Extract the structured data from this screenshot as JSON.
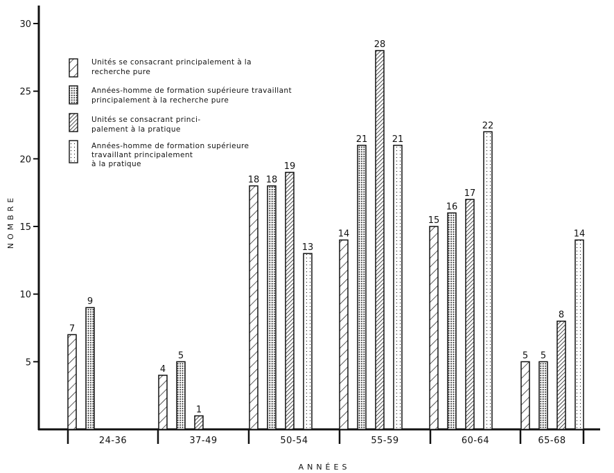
{
  "chart_data": {
    "type": "bar",
    "xlabel": "ANNÉES",
    "ylabel": "NOMBRE",
    "ylim": [
      0,
      30
    ],
    "yticks": [
      5,
      10,
      15,
      20,
      25,
      30
    ],
    "categories": [
      "24-36",
      "37-49",
      "50-54",
      "55-59",
      "60-64",
      "65-68"
    ],
    "series": [
      {
        "name": "Unités se consacrant principalement à la recherche pure",
        "pattern": "hatch-light",
        "values": [
          7,
          4,
          18,
          14,
          15,
          5
        ]
      },
      {
        "name": "Années-homme de formation supérieure travaillant principalement à la recherche pure",
        "pattern": "dots-dense",
        "values": [
          9,
          5,
          18,
          21,
          16,
          5
        ]
      },
      {
        "name": "Unités se consacrant principalement à la pratique",
        "pattern": "hatch-dense",
        "values": [
          null,
          1,
          19,
          28,
          17,
          8
        ]
      },
      {
        "name": "Années-homme de formation supérieure travaillant principalement à la pratique",
        "pattern": "dots-sparse",
        "values": [
          null,
          null,
          13,
          21,
          22,
          14
        ]
      }
    ],
    "legend": {
      "placement": "top-left",
      "entries": [
        [
          "Unités se consacrant principalement à la",
          "recherche pure"
        ],
        [
          "Années-homme de formation supérieure travaillant",
          "principalement à la recherche pure"
        ],
        [
          "Unités se consacrant princi-",
          "palement à la pratique"
        ],
        [
          "Années-homme de formation supérieure",
          "travaillant principalement",
          "à la pratique"
        ]
      ]
    },
    "grid": false,
    "colors": {
      "ink": "#111111",
      "background": "#ffffff"
    }
  }
}
